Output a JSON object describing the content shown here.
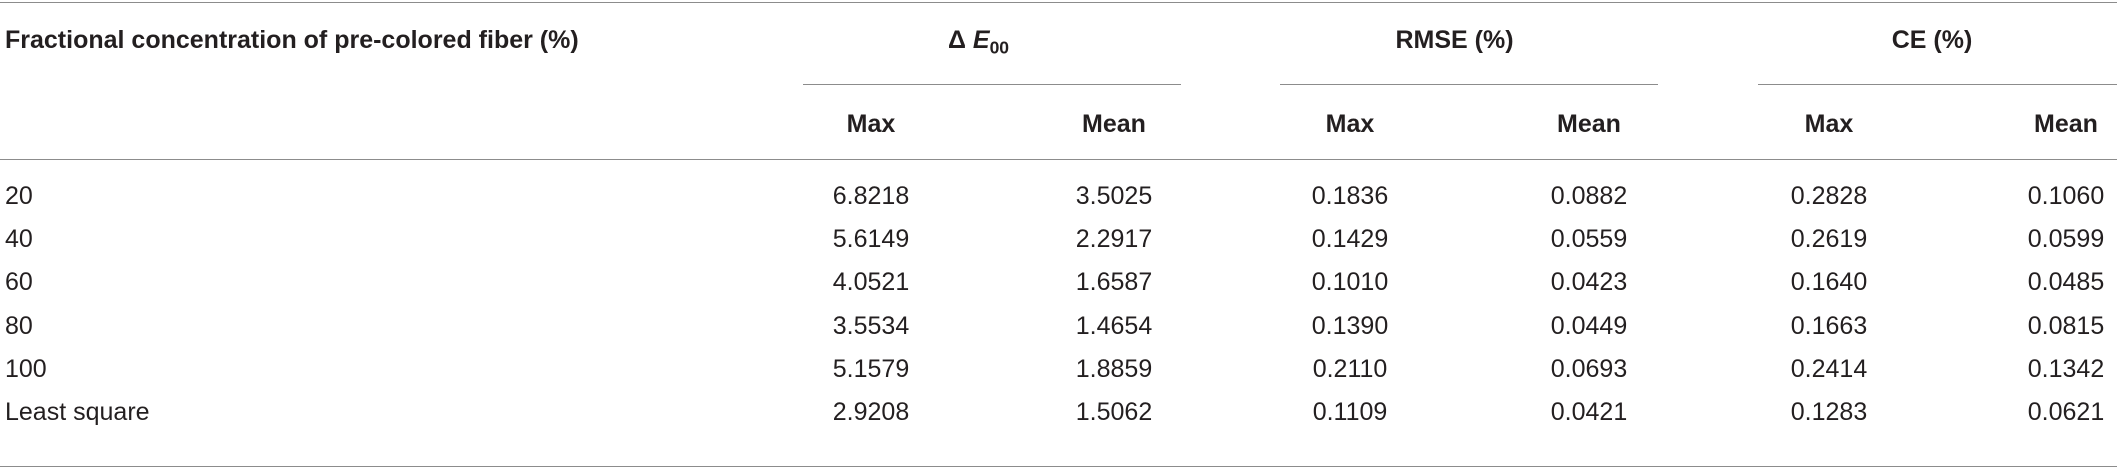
{
  "table": {
    "header": {
      "row_label": "Fractional concentration of pre-colored fiber (%)",
      "groups": [
        {
          "symbol": "Δ",
          "letter": "E",
          "subscript": "00"
        },
        {
          "label": "RMSE (%)"
        },
        {
          "label": "CE (%)"
        }
      ],
      "subheaders": [
        "Max",
        "Mean",
        "Max",
        "Mean",
        "Max",
        "Mean"
      ]
    },
    "rows": [
      [
        "20",
        "6.8218",
        "3.5025",
        "0.1836",
        "0.0882",
        "0.2828",
        "0.1060"
      ],
      [
        "40",
        "5.6149",
        "2.2917",
        "0.1429",
        "0.0559",
        "0.2619",
        "0.0599"
      ],
      [
        "60",
        "4.0521",
        "1.6587",
        "0.1010",
        "0.0423",
        "0.1640",
        "0.0485"
      ],
      [
        "80",
        "3.5534",
        "1.4654",
        "0.1390",
        "0.0449",
        "0.1663",
        "0.0815"
      ],
      [
        "100",
        "5.1579",
        "1.8859",
        "0.2110",
        "0.0693",
        "0.2414",
        "0.1342"
      ],
      [
        "Least square",
        "2.9208",
        "1.5062",
        "0.1109",
        "0.0421",
        "0.1283",
        "0.0621"
      ]
    ]
  }
}
